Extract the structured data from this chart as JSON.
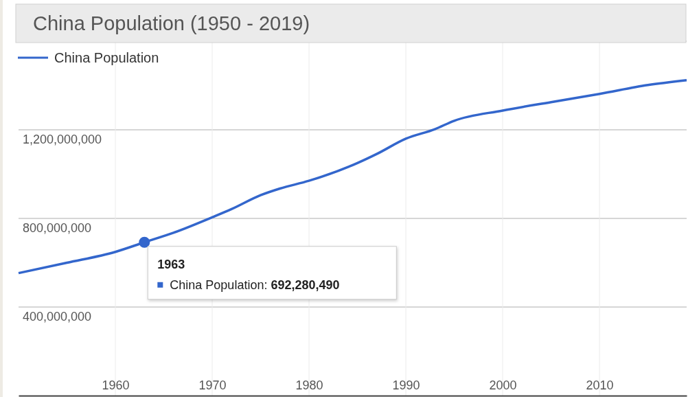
{
  "chart_data": {
    "type": "line",
    "title": "China Population (1950 - 2019)",
    "x": [
      1950,
      1955,
      1960,
      1963,
      1966,
      1970,
      1972,
      1975,
      1977,
      1980,
      1985,
      1987,
      1990,
      1993,
      1995,
      2000,
      2005,
      2010,
      2015,
      2019
    ],
    "series": [
      {
        "name": "China Population",
        "color": "#3366cc",
        "values": [
          553000000,
          600000000,
          649000000,
          692280490,
          735000000,
          805000000,
          842000000,
          905000000,
          935000000,
          970000000,
          1050000000,
          1091000000,
          1160000000,
          1203000000,
          1241000000,
          1287000000,
          1325000000,
          1362000000,
          1402000000,
          1424000000
        ]
      }
    ],
    "xlim": [
      1950,
      2019
    ],
    "xticks": [
      1960,
      1970,
      1980,
      1990,
      2000,
      2010
    ],
    "ylim": [
      0,
      1600000000
    ],
    "yticks": [
      {
        "value": 0,
        "label": null
      },
      {
        "value": 400000000,
        "label": "400,000,000"
      },
      {
        "value": 800000000,
        "label": "800,000,000"
      },
      {
        "value": 1200000000,
        "label": "1,200,000,000"
      },
      {
        "value": 1600000000,
        "label": null
      }
    ],
    "grid": true,
    "legend": "top left",
    "marker": "none",
    "line_style": "solid",
    "annotations": [
      {
        "text": "1963\nChina Population: 692,280,490",
        "x": 1963,
        "y": 692280490
      }
    ]
  }
}
